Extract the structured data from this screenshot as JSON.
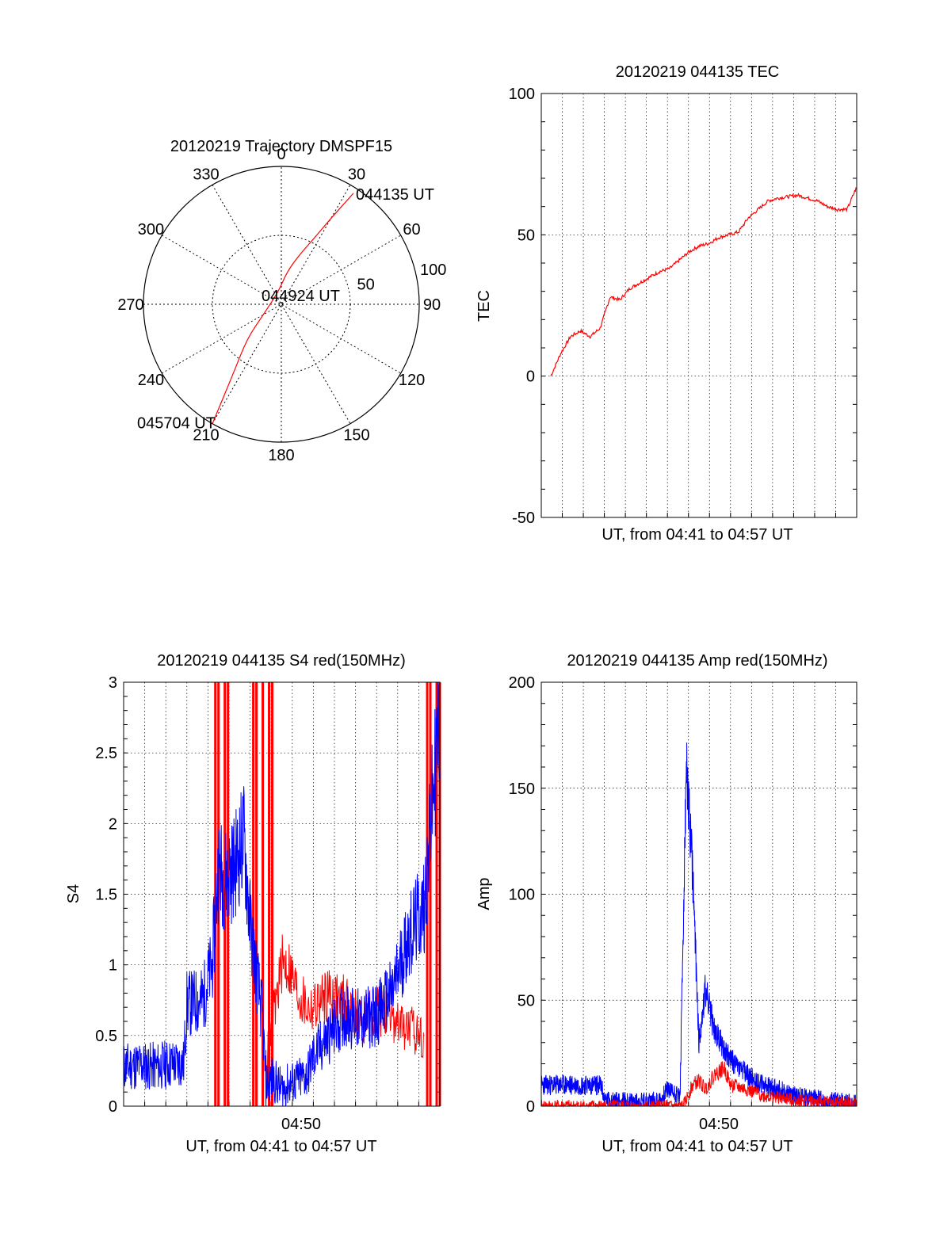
{
  "chart_data": [
    {
      "type": "polar",
      "title": "20120219 Trajectory DMSPF15",
      "angle_labels": [
        "0",
        "30",
        "60",
        "90",
        "120",
        "150",
        "180",
        "210",
        "240",
        "270",
        "300",
        "330"
      ],
      "radial_labels": [
        "50",
        "100"
      ],
      "rlim": [
        0,
        100
      ],
      "trajectory": {
        "color": "#ff0000",
        "points": [
          {
            "az": 33,
            "r": 96
          },
          {
            "az": 30,
            "r": 72
          },
          {
            "az": 26,
            "r": 52
          },
          {
            "az": 20,
            "r": 38
          },
          {
            "az": 10,
            "r": 24
          },
          {
            "az": -10,
            "r": 10
          },
          {
            "az": -120,
            "r": 15
          },
          {
            "az": -135,
            "r": 35
          },
          {
            "az": -145,
            "r": 60
          },
          {
            "az": -150,
            "r": 100
          }
        ]
      },
      "annotations": [
        {
          "text": "044135 UT",
          "az": 33,
          "r": 96
        },
        {
          "text": "044924 UT",
          "az": 0,
          "r": 0
        },
        {
          "text": "045704 UT",
          "az": -150,
          "r": 100
        }
      ]
    },
    {
      "type": "line",
      "title": "20120219 044135 TEC",
      "xlabel": "UT, from 04:41 to 04:57 UT",
      "ylabel": "TEC",
      "xlim": [
        "04:41:35",
        "04:57:04"
      ],
      "ylim": [
        -50,
        100
      ],
      "yticks": [
        "-50",
        "0",
        "50",
        "100"
      ],
      "grid": true,
      "series": [
        {
          "color": "#ff0000",
          "x_seconds_after_start": [
            0,
            30,
            60,
            90,
            120,
            150,
            180,
            210,
            240,
            270,
            300,
            330,
            360,
            390,
            420,
            450,
            480,
            510,
            540,
            570,
            600,
            630,
            660,
            690,
            720,
            750,
            780,
            810,
            840,
            870,
            900,
            929
          ],
          "values": [
            0,
            8,
            14,
            16,
            14,
            17,
            28,
            27,
            31,
            33,
            35,
            37,
            38,
            41,
            44,
            46,
            47,
            49,
            50,
            51,
            56,
            59,
            62,
            63,
            63.5,
            64,
            63,
            62,
            60,
            59,
            59,
            67
          ]
        }
      ]
    },
    {
      "type": "line",
      "title": "20120219 044135 S4 red(150MHz)",
      "xlabel": "UT, from 04:41 to 04:57 UT",
      "ylabel": "S4",
      "xtick_label": "04:50",
      "ylim": [
        0,
        3
      ],
      "yticks": [
        "0",
        "0.5",
        "1",
        "1.5",
        "2",
        "2.5",
        "3"
      ],
      "grid": true,
      "series": [
        {
          "color": "#0000ff",
          "x_fraction": [
            0.0,
            0.05,
            0.1,
            0.15,
            0.19,
            0.2,
            0.25,
            0.28,
            0.3,
            0.32,
            0.35,
            0.38,
            0.4,
            0.44,
            0.45,
            0.47,
            0.5,
            0.52,
            0.55,
            0.58,
            0.6,
            0.65,
            0.7,
            0.75,
            0.8,
            0.85,
            0.9,
            0.95,
            1.0
          ],
          "values": [
            0.28,
            0.29,
            0.28,
            0.3,
            0.3,
            0.72,
            0.75,
            1.0,
            1.7,
            1.6,
            1.7,
            1.9,
            1.3,
            0.6,
            0.15,
            0.2,
            0.12,
            0.15,
            0.18,
            0.22,
            0.35,
            0.5,
            0.65,
            0.6,
            0.65,
            0.8,
            1.2,
            1.4,
            2.8
          ]
        },
        {
          "color": "#ff0000",
          "x_fraction": [
            0.45,
            0.5,
            0.52,
            0.55,
            0.58,
            0.6,
            0.65,
            0.7,
            0.75,
            0.8,
            0.85,
            0.9,
            0.95
          ],
          "values": [
            0.3,
            1.0,
            1.0,
            0.8,
            0.7,
            0.7,
            0.8,
            0.75,
            0.6,
            0.7,
            0.6,
            0.55,
            0.5
          ]
        }
      ]
    },
    {
      "type": "line",
      "title": "20120219 044135 Amp red(150MHz)",
      "xlabel": "UT, from 04:41 to 04:57 UT",
      "ylabel": "Amp",
      "xtick_label": "04:50",
      "ylim": [
        0,
        200
      ],
      "yticks": [
        "0",
        "50",
        "100",
        "150",
        "200"
      ],
      "grid": true,
      "series": [
        {
          "color": "#0000ff",
          "x_fraction": [
            0.0,
            0.1,
            0.19,
            0.2,
            0.3,
            0.38,
            0.4,
            0.44,
            0.46,
            0.48,
            0.5,
            0.52,
            0.55,
            0.6,
            0.65,
            0.7,
            0.75,
            0.8,
            0.85,
            0.9,
            0.95,
            1.0
          ],
          "values": [
            10,
            10,
            10,
            3,
            2,
            3,
            8,
            5,
            160,
            110,
            30,
            55,
            35,
            22,
            15,
            10,
            8,
            5,
            4,
            3,
            2,
            1
          ]
        },
        {
          "color": "#ff0000",
          "x_fraction": [
            0.0,
            0.45,
            0.48,
            0.5,
            0.52,
            0.55,
            0.58,
            0.6,
            0.65,
            0.7,
            0.8,
            0.9,
            1.0
          ],
          "values": [
            0,
            0,
            10,
            12,
            8,
            15,
            18,
            10,
            8,
            5,
            3,
            2,
            1
          ]
        }
      ]
    }
  ]
}
